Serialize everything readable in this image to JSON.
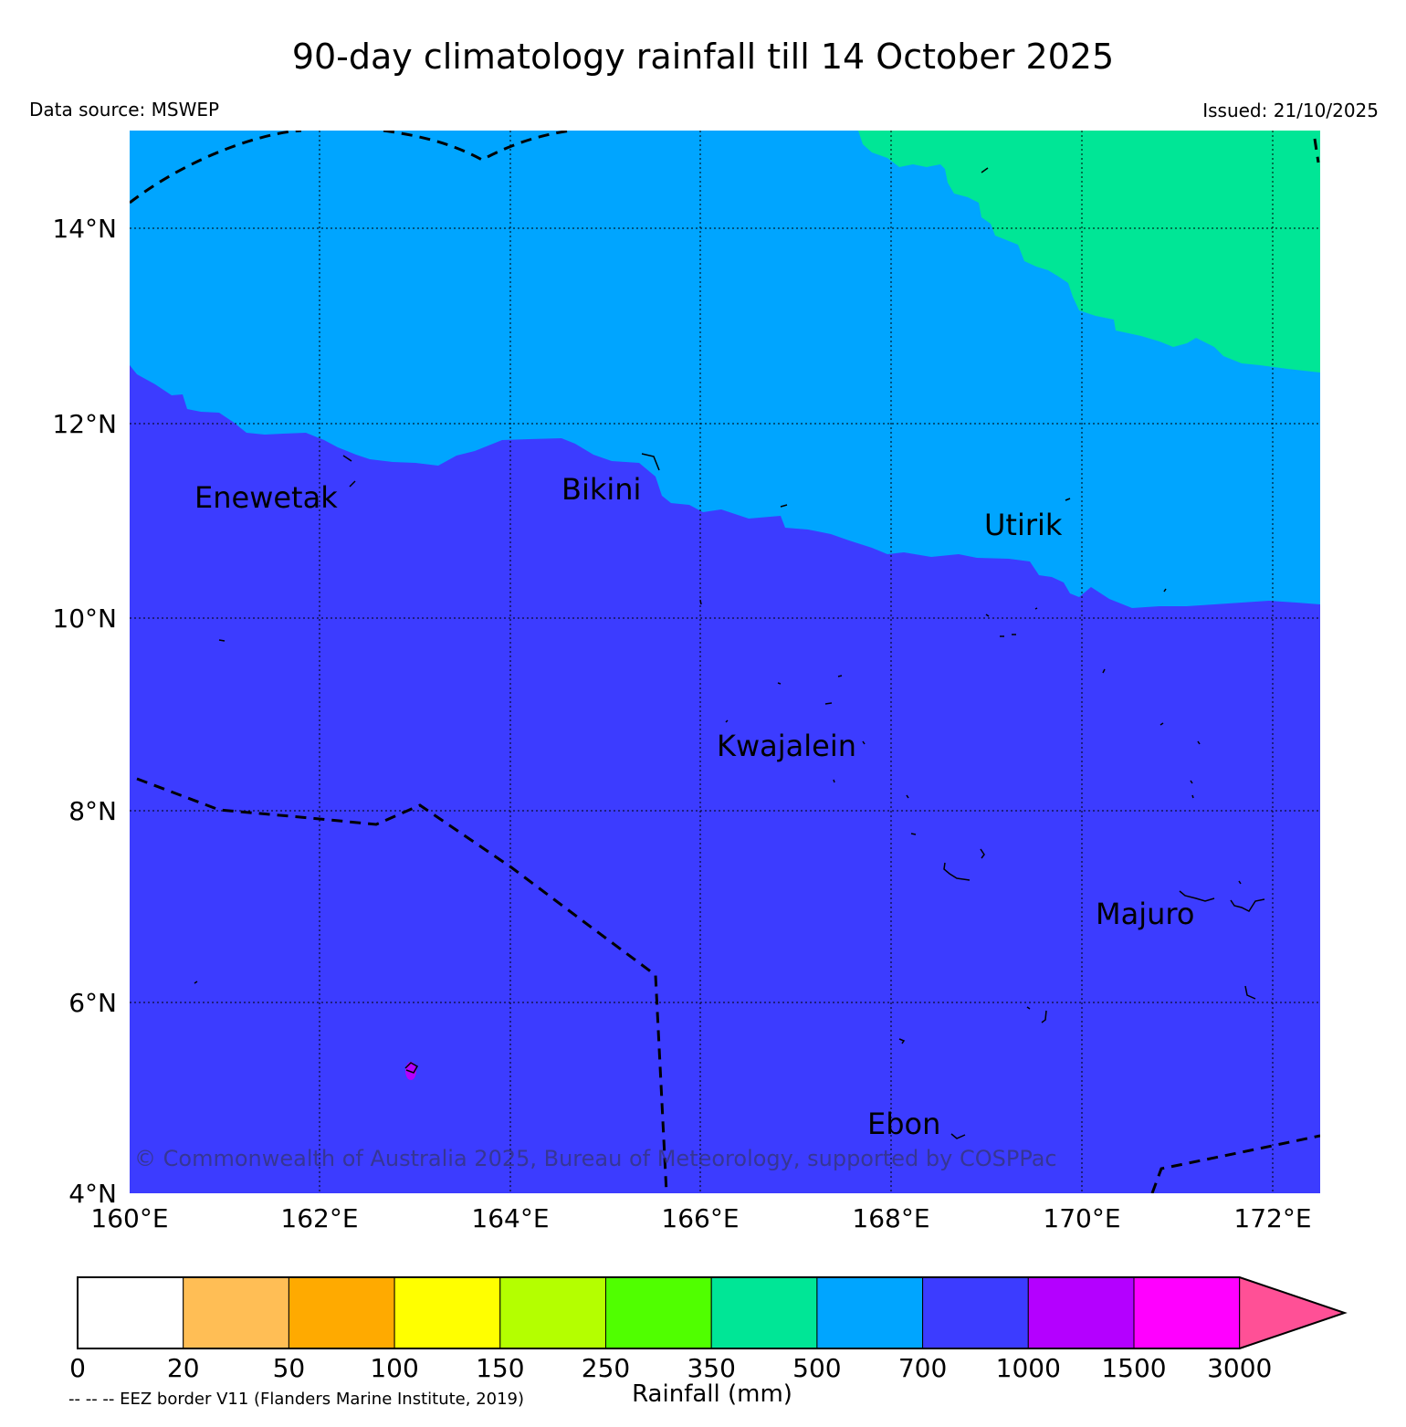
{
  "header": {
    "title": "90-day climatology rainfall till 14 October 2025",
    "source": "Data source: MSWEP",
    "issued": "Issued: 21/10/2025"
  },
  "map": {
    "lon_range": [
      160,
      172.5
    ],
    "lat_range": [
      4,
      15
    ],
    "lon_ticks": [
      "160°E",
      "162°E",
      "164°E",
      "166°E",
      "168°E",
      "170°E",
      "172°E"
    ],
    "lat_ticks": [
      "4°N",
      "6°N",
      "8°N",
      "10°N",
      "12°N",
      "14°N"
    ],
    "places": [
      "Enewetak",
      "Bikini",
      "Utirik",
      "Kwajalein",
      "Majuro",
      "Ebon"
    ],
    "copyright": "© Commonwealth of Australia 2025, Bureau of Meteorology, supported by COSPPac",
    "region_colors": {
      "north": "#00E696",
      "mid": "#00A5FF",
      "south": "#3C3CFF",
      "spot": "#B400FF"
    }
  },
  "colorbar": {
    "labels": [
      "0",
      "20",
      "50",
      "100",
      "150",
      "250",
      "350",
      "500",
      "700",
      "1000",
      "1500",
      "3000"
    ],
    "colors": [
      "#FFFFFF",
      "#FFBE55",
      "#FFAA00",
      "#FFFF00",
      "#B4FF00",
      "#50FF00",
      "#00E696",
      "#00A5FF",
      "#3C3CFF",
      "#B400FF",
      "#FF00FF"
    ],
    "extend_color": "#FF5096",
    "title": "Rainfall (mm)",
    "eez_note": "-- -- -- EEZ border V11 (Flanders Marine Institute, 2019)"
  }
}
